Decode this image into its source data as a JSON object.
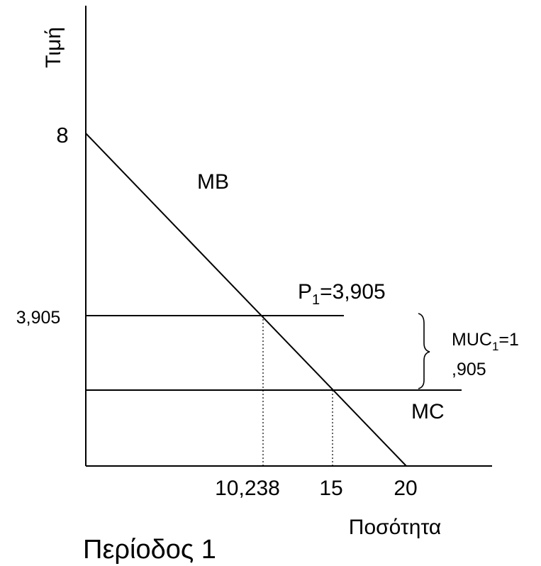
{
  "diagram": {
    "axes": {
      "y_label": "Τιμή",
      "x_label": "Ποσότητα"
    },
    "y_ticks": [
      "8",
      "3,905"
    ],
    "x_ticks": [
      "10,238",
      "15",
      "20"
    ],
    "curves": {
      "mb_label": "MB",
      "mc_label": "MC"
    },
    "price": {
      "label_prefix": "P",
      "label_subscript": "1",
      "label_value": "=3,905"
    },
    "muc": {
      "label_prefix": "MUC",
      "label_subscript": "1",
      "label_value_line1": "=1",
      "label_value_line2": ",905"
    },
    "period_label": "Περίοδος 1"
  }
}
